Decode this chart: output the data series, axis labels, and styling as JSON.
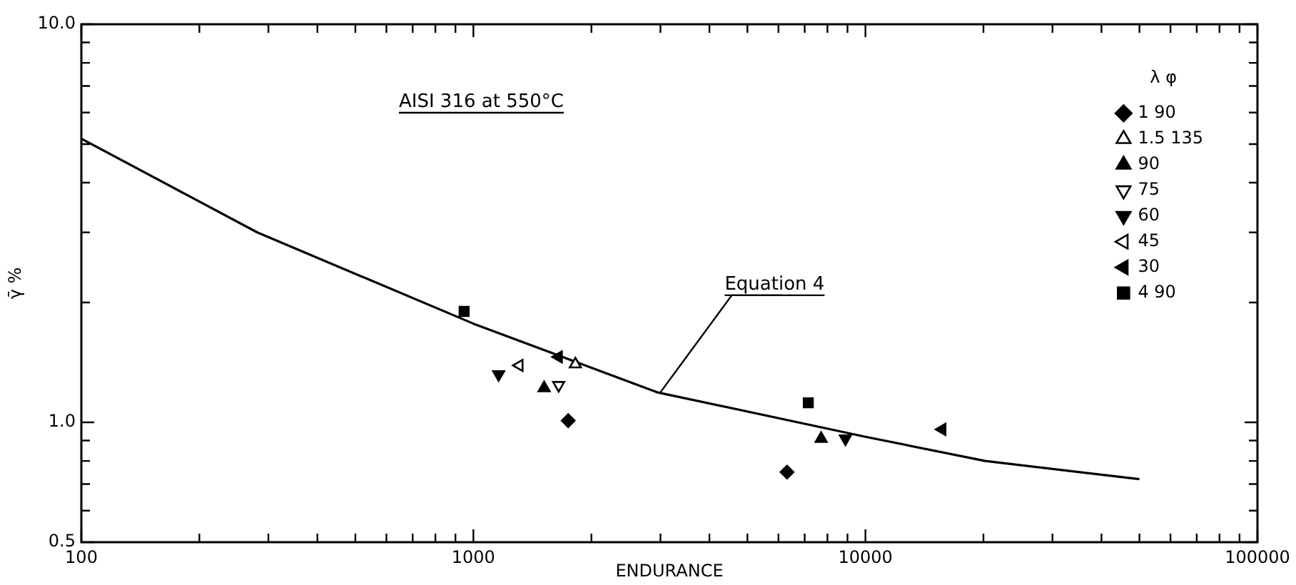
{
  "chart_data": {
    "type": "scatter",
    "xlabel": "ENDURANCE",
    "ylabel": "γ̄ %",
    "legend_title": "λ φ",
    "legend": "top right",
    "grid": false,
    "log": "xy",
    "xlim": [
      100,
      100000
    ],
    "ylim": [
      0.5,
      10
    ],
    "xticks": [
      100,
      {
        "value": 200,
        "label": null
      },
      {
        "value": 300,
        "label": null
      },
      {
        "value": 400,
        "label": null
      },
      {
        "value": 500,
        "label": null
      },
      {
        "value": 600,
        "label": null
      },
      {
        "value": 700,
        "label": null
      },
      {
        "value": 800,
        "label": null
      },
      {
        "value": 900,
        "label": null
      },
      1000,
      {
        "value": 2000,
        "label": null
      },
      {
        "value": 3000,
        "label": null
      },
      {
        "value": 4000,
        "label": null
      },
      {
        "value": 5000,
        "label": null
      },
      {
        "value": 6000,
        "label": null
      },
      {
        "value": 7000,
        "label": null
      },
      {
        "value": 8000,
        "label": null
      },
      {
        "value": 9000,
        "label": null
      },
      10000,
      {
        "value": 20000,
        "label": null
      },
      {
        "value": 30000,
        "label": null
      },
      {
        "value": 40000,
        "label": null
      },
      {
        "value": 50000,
        "label": null
      },
      {
        "value": 60000,
        "label": null
      },
      {
        "value": 70000,
        "label": null
      },
      {
        "value": 80000,
        "label": null
      },
      {
        "value": 90000,
        "label": null
      },
      100000
    ],
    "yticks": [
      {
        "value": 0.5,
        "label": "0.5"
      },
      {
        "value": 0.6,
        "label": null
      },
      {
        "value": 0.7,
        "label": null
      },
      {
        "value": 0.8,
        "label": null
      },
      {
        "value": 0.9,
        "label": null
      },
      {
        "value": 1,
        "label": "1.0"
      },
      {
        "value": 2,
        "label": null
      },
      {
        "value": 3,
        "label": null
      },
      {
        "value": 4,
        "label": null
      },
      {
        "value": 5,
        "label": null
      },
      {
        "value": 6,
        "label": null
      },
      {
        "value": 7,
        "label": null
      },
      {
        "value": 8,
        "label": null
      },
      {
        "value": 9,
        "label": null
      },
      {
        "value": 10,
        "label": "10.0"
      }
    ],
    "series": [
      {
        "name": "1 90",
        "color": "#000000",
        "marker": "diamond",
        "x": [
          1745,
          6310
        ],
        "values": [
          1.01,
          0.75
        ]
      },
      {
        "name": "1.5 135",
        "color": "#000000",
        "marker": "triangle",
        "x": [
          1820
        ],
        "values": [
          1.4
        ]
      },
      {
        "name": "90",
        "color": "#000000",
        "marker": "triangle",
        "x": [
          1515,
          7710
        ],
        "values": [
          1.22,
          0.91
        ]
      },
      {
        "name": "75",
        "color": "#000000",
        "marker": "triangle",
        "x": [
          1650
        ],
        "values": [
          1.24
        ]
      },
      {
        "name": "60",
        "color": "#000000",
        "marker": "triangle",
        "x": [
          1160,
          8890
        ],
        "values": [
          1.32,
          0.91
        ]
      },
      {
        "name": "45",
        "color": "#000000",
        "marker": "triangle",
        "x": [
          1310
        ],
        "values": [
          1.39
        ]
      },
      {
        "name": "30",
        "color": "#000000",
        "marker": "triangle",
        "x": [
          1650,
          15700
        ],
        "values": [
          1.46,
          0.96
        ]
      },
      {
        "name": "4 90",
        "color": "#000000",
        "marker": "square",
        "x": [
          947,
          7150
        ],
        "values": [
          1.9,
          1.12
        ]
      },
      {
        "type": "line",
        "color": "#000000",
        "marker": "none",
        "x": [
          100,
          281,
          1000,
          2940,
          10000,
          20200,
          50000
        ],
        "values": [
          5.16,
          3.0,
          1.77,
          1.19,
          0.92,
          0.8,
          0.72
        ]
      }
    ],
    "annotations": [
      "AISI 316 at 550°C",
      {
        "text": "Equation 4",
        "x": 3000,
        "y": 1.19
      }
    ]
  }
}
